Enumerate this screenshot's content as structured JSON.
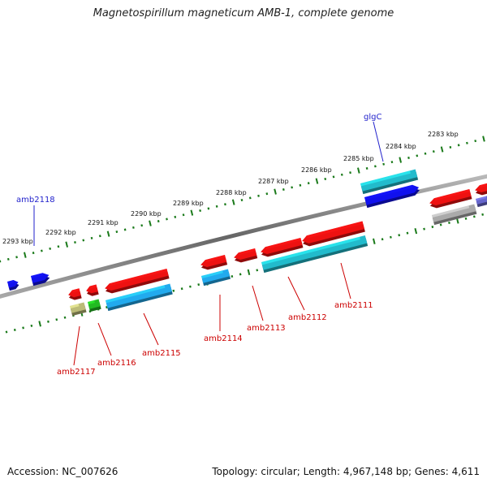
{
  "title": "Magnetospirillum magneticum AMB-1, complete genome",
  "footer": {
    "accession": "Accession: NC_007626",
    "topology": "Topology: circular; Length: 4,967,148 bp; Genes: 4,611"
  },
  "colors": {
    "backbone": "#888888",
    "tick": "#1a7a1a",
    "label_blue": "#2222cc",
    "label_red": "#cc0000",
    "gene_red": "#ee1111",
    "gene_blue": "#1111ee",
    "gene_cyan": "#22bbcc",
    "gene_lightblue": "#22aaee",
    "gene_olive": "#bbbb77",
    "gene_green": "#22bb22",
    "gene_gray": "#aaaaaa"
  },
  "kbp_labels": [
    "2293 kbp",
    "2292 kbp",
    "2291 kbp",
    "2290 kbp",
    "2289 kbp",
    "2288 kbp",
    "2287 kbp",
    "2286 kbp",
    "2285 kbp",
    "2284 kbp",
    "2283 kbp"
  ],
  "gene_labels_top": [
    {
      "name": "amb2118"
    },
    {
      "name": "glgC"
    }
  ],
  "gene_labels_bottom": [
    {
      "name": "amb2117"
    },
    {
      "name": "amb2116"
    },
    {
      "name": "amb2115"
    },
    {
      "name": "amb2114"
    },
    {
      "name": "amb2113"
    },
    {
      "name": "amb2112"
    },
    {
      "name": "amb2111"
    }
  ]
}
